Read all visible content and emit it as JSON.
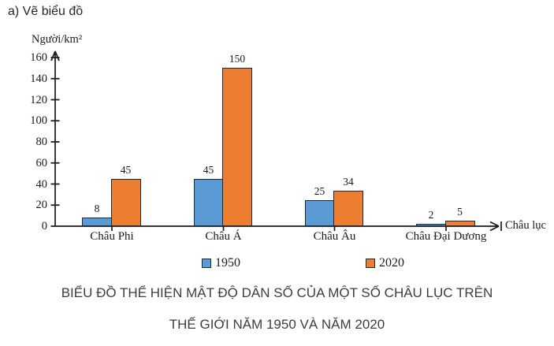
{
  "header": {
    "label": "a) Vẽ biểu đồ"
  },
  "chart_data": {
    "type": "bar",
    "title_lines": [
      "BIỂU ĐỒ THỂ HIỆN MẬT ĐỘ DÂN SỐ CỦA MỘT SỐ CHÂU LỤC TRÊN",
      "THẾ GIỚI NĂM 1950 VÀ NĂM 2020"
    ],
    "ylabel": "Người/km²",
    "xlabel": "Châu lục",
    "categories": [
      "Châu Phi",
      "Châu Á",
      "Châu Âu",
      "Châu Đại Dương"
    ],
    "series": [
      {
        "name": "1950",
        "color": "#5b9bd5",
        "values": [
          8,
          45,
          25,
          2
        ]
      },
      {
        "name": "2020",
        "color": "#ed7d31",
        "values": [
          45,
          150,
          34,
          5
        ]
      }
    ],
    "ylim": [
      0,
      160
    ],
    "ytick_step": 20,
    "grid": false,
    "legend_position": "bottom",
    "axis_color": "#1a1a1a",
    "bar_border_color": "#1c2b3a"
  }
}
